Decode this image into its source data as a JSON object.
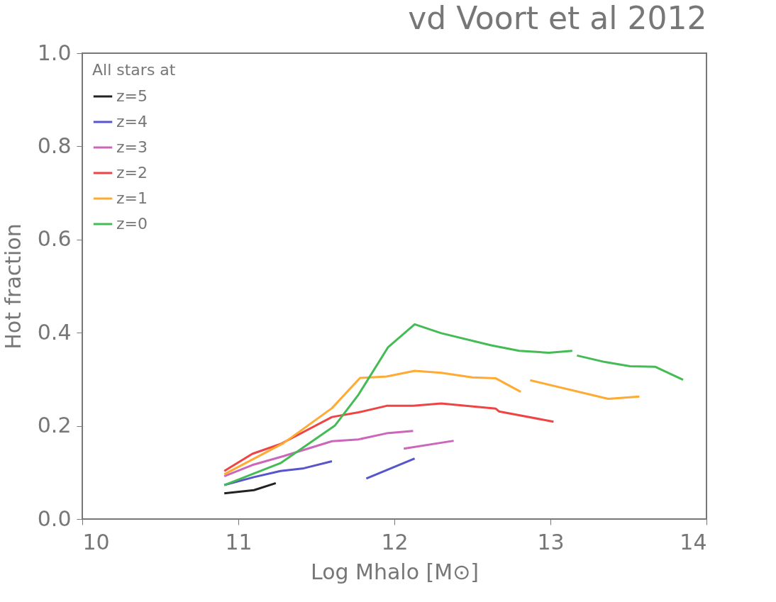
{
  "chart_data": {
    "type": "line",
    "title": "vd Voort et al 2012",
    "xlabel": "Log Mhalo [M⊙]",
    "ylabel": "Hot fraction",
    "legend_title": "All stars at",
    "series": [
      {
        "name": "z=5",
        "color": "#222222",
        "x": [
          10.91,
          11.1,
          11.24
        ],
        "values": [
          0.055,
          0.062,
          0.077
        ]
      },
      {
        "name": "z=4",
        "color": "#5555cc",
        "x": [
          10.91,
          11.1,
          11.27,
          11.42,
          11.6,
          11.71,
          11.82,
          12.13
        ],
        "values": [
          0.073,
          0.09,
          0.103,
          0.109,
          0.124,
          null,
          0.087,
          0.13
        ]
      },
      {
        "name": "z=3",
        "color": "#cc66bb",
        "x": [
          10.91,
          11.09,
          11.29,
          11.6,
          11.77,
          11.95,
          12.12,
          12.09,
          12.06,
          12.38
        ],
        "values": [
          0.092,
          0.116,
          0.135,
          0.167,
          0.171,
          0.184,
          0.189,
          null,
          0.151,
          0.168
        ]
      },
      {
        "name": "z=2",
        "color": "#ee4444",
        "x": [
          10.91,
          11.09,
          11.27,
          11.6,
          11.77,
          11.95,
          12.12,
          12.3,
          12.65,
          12.67,
          13.02
        ],
        "values": [
          0.103,
          0.14,
          0.161,
          0.219,
          0.229,
          0.243,
          0.243,
          0.248,
          0.237,
          0.231,
          0.209
        ]
      },
      {
        "name": "z=1",
        "color": "#ffaa33",
        "x": [
          10.91,
          11.29,
          11.6,
          11.78,
          11.95,
          12.13,
          12.3,
          12.5,
          12.65,
          12.81,
          12.84,
          12.87,
          13.37,
          13.57
        ],
        "values": [
          0.096,
          0.163,
          0.238,
          0.303,
          0.306,
          0.318,
          0.314,
          0.304,
          0.302,
          0.273,
          null,
          0.298,
          0.258,
          0.263
        ]
      },
      {
        "name": "z=0",
        "color": "#44bb55",
        "x": [
          10.91,
          11.27,
          11.62,
          11.77,
          11.96,
          12.13,
          12.3,
          12.62,
          12.8,
          12.99,
          13.14,
          13.15,
          13.17,
          13.35,
          13.51,
          13.67,
          13.85
        ],
        "values": [
          0.073,
          0.12,
          0.201,
          0.267,
          0.369,
          0.418,
          0.399,
          0.373,
          0.361,
          0.357,
          0.361,
          null,
          0.351,
          0.337,
          0.328,
          0.327,
          0.299
        ]
      }
    ],
    "xlim": [
      10,
      14
    ],
    "xticks": [
      10,
      11,
      12,
      13,
      14
    ],
    "ylim": [
      0,
      1
    ],
    "yticks": [
      {
        "value": 0,
        "label": "0.0"
      },
      {
        "value": 0.2,
        "label": "0.2"
      },
      {
        "value": 0.4,
        "label": "0.4"
      },
      {
        "value": 0.6,
        "label": "0.6"
      },
      {
        "value": 0.8,
        "label": "0.8"
      },
      {
        "value": 1,
        "label": "1.0"
      }
    ],
    "grid": false,
    "legend": "top left",
    "marker": "none",
    "line_style": "solid"
  }
}
